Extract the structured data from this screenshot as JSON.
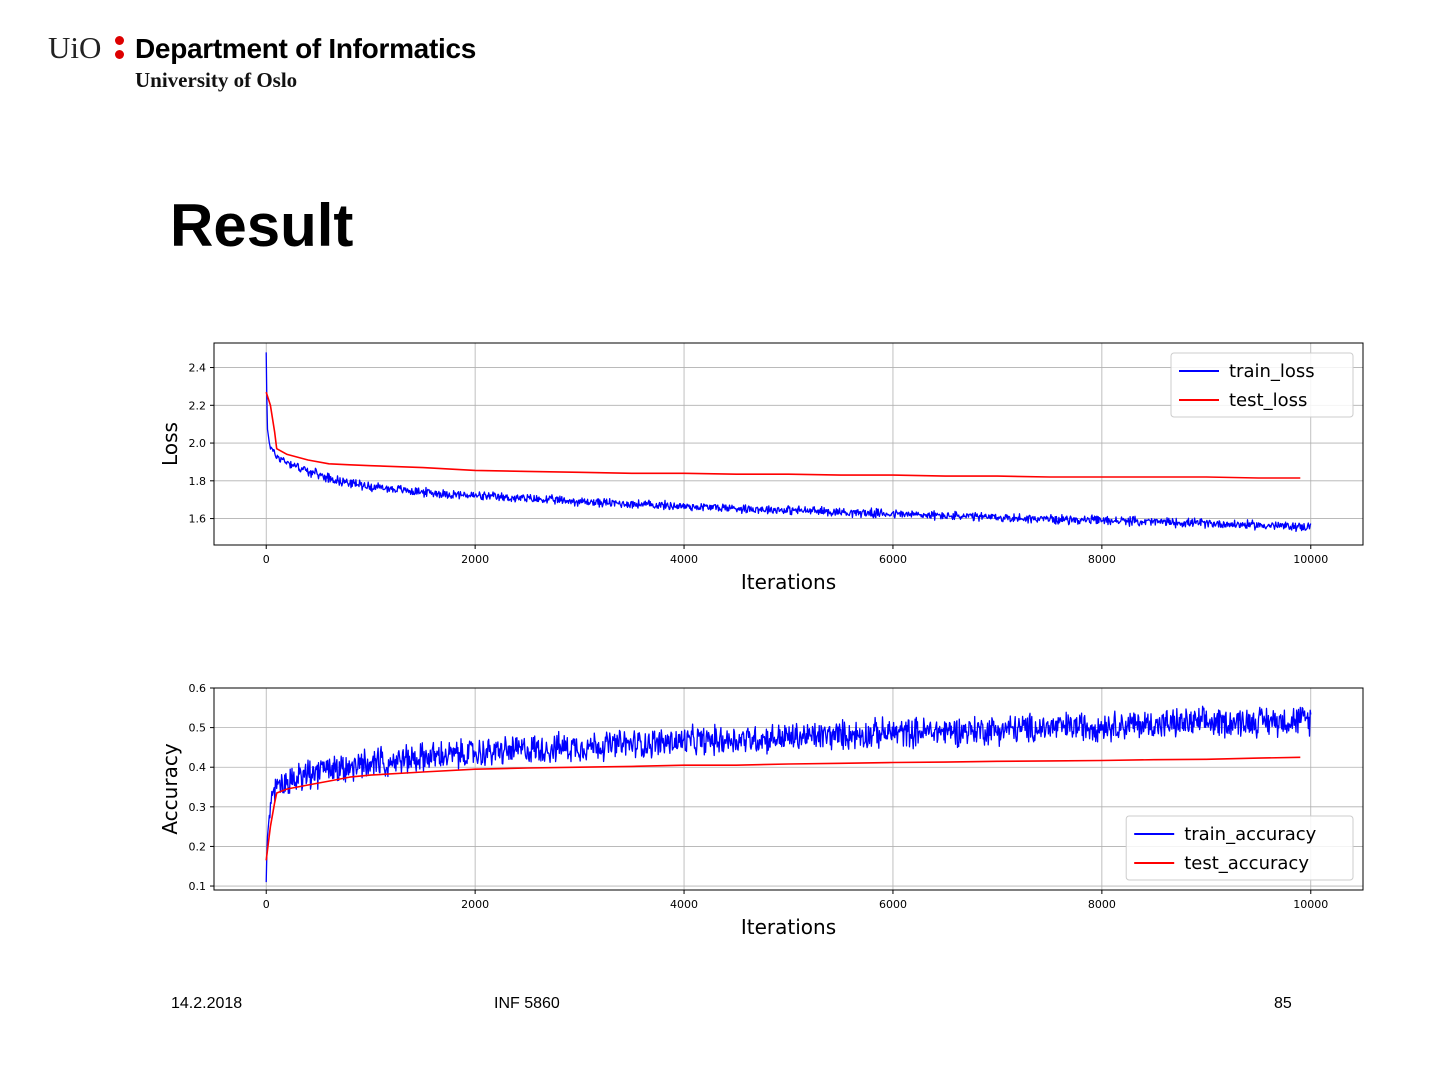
{
  "header": {
    "logo_text": "UiO",
    "department": "Department of Informatics",
    "university": "University of Oslo"
  },
  "slide": {
    "title": "Result"
  },
  "footer": {
    "date": "14.2.2018",
    "course": "INF 5860",
    "page": "85"
  },
  "colors": {
    "train": "#0000ff",
    "test": "#ff0000",
    "logo_dot": "#dd0000",
    "grid": "#b0b0b0"
  },
  "chart_data": [
    {
      "type": "line",
      "xlabel": "Iterations",
      "ylabel": "Loss",
      "xlim": [
        -500,
        10500
      ],
      "ylim": [
        1.46,
        2.53
      ],
      "xticks": [
        0,
        2000,
        4000,
        6000,
        8000,
        10000
      ],
      "yticks": [
        1.6,
        1.8,
        2.0,
        2.2,
        2.4
      ],
      "grid": true,
      "legend_position": "upper right",
      "series": [
        {
          "name": "train_loss",
          "color": "#0000ff",
          "noisy": true,
          "x": [
            0,
            10,
            30,
            60,
            100,
            200,
            400,
            700,
            1000,
            1500,
            2000,
            2500,
            3000,
            4000,
            5000,
            6000,
            7000,
            8000,
            9000,
            10000
          ],
          "y": [
            2.48,
            2.08,
            2.0,
            1.96,
            1.93,
            1.9,
            1.85,
            1.8,
            1.77,
            1.74,
            1.72,
            1.705,
            1.69,
            1.665,
            1.645,
            1.625,
            1.605,
            1.59,
            1.575,
            1.555
          ]
        },
        {
          "name": "test_loss",
          "color": "#ff0000",
          "noisy": false,
          "x": [
            0,
            40,
            80,
            100,
            200,
            400,
            600,
            800,
            1000,
            1500,
            2000,
            2500,
            3000,
            3500,
            4000,
            4500,
            5000,
            5500,
            6000,
            6500,
            7000,
            7500,
            8000,
            8500,
            9000,
            9500,
            9900
          ],
          "y": [
            2.27,
            2.2,
            2.06,
            1.97,
            1.94,
            1.91,
            1.89,
            1.885,
            1.88,
            1.87,
            1.855,
            1.85,
            1.845,
            1.84,
            1.84,
            1.835,
            1.835,
            1.83,
            1.83,
            1.825,
            1.825,
            1.82,
            1.82,
            1.82,
            1.82,
            1.815,
            1.815
          ]
        }
      ]
    },
    {
      "type": "line",
      "xlabel": "Iterations",
      "ylabel": "Accuracy",
      "xlim": [
        -500,
        10500
      ],
      "ylim": [
        0.09,
        0.6
      ],
      "xticks": [
        0,
        2000,
        4000,
        6000,
        8000,
        10000
      ],
      "yticks": [
        0.1,
        0.2,
        0.3,
        0.4,
        0.5,
        0.6
      ],
      "grid": true,
      "legend_position": "lower right",
      "series": [
        {
          "name": "train_accuracy",
          "color": "#0000ff",
          "noisy": true,
          "x": [
            0,
            10,
            30,
            60,
            100,
            200,
            400,
            700,
            1000,
            1500,
            2000,
            2500,
            3000,
            4000,
            5000,
            6000,
            7000,
            8000,
            9000,
            10000
          ],
          "y": [
            0.11,
            0.22,
            0.28,
            0.32,
            0.345,
            0.36,
            0.38,
            0.395,
            0.41,
            0.425,
            0.435,
            0.445,
            0.452,
            0.465,
            0.475,
            0.487,
            0.495,
            0.505,
            0.512,
            0.52
          ]
        },
        {
          "name": "test_accuracy",
          "color": "#ff0000",
          "noisy": false,
          "x": [
            0,
            40,
            80,
            100,
            200,
            400,
            600,
            800,
            1000,
            1500,
            2000,
            2500,
            3000,
            3500,
            4000,
            4500,
            5000,
            5500,
            6000,
            6500,
            7000,
            7500,
            8000,
            8500,
            9000,
            9500,
            9900
          ],
          "y": [
            0.165,
            0.25,
            0.31,
            0.335,
            0.345,
            0.355,
            0.365,
            0.375,
            0.38,
            0.388,
            0.395,
            0.398,
            0.4,
            0.402,
            0.405,
            0.405,
            0.408,
            0.41,
            0.412,
            0.413,
            0.415,
            0.416,
            0.417,
            0.419,
            0.42,
            0.423,
            0.425
          ]
        }
      ]
    }
  ]
}
